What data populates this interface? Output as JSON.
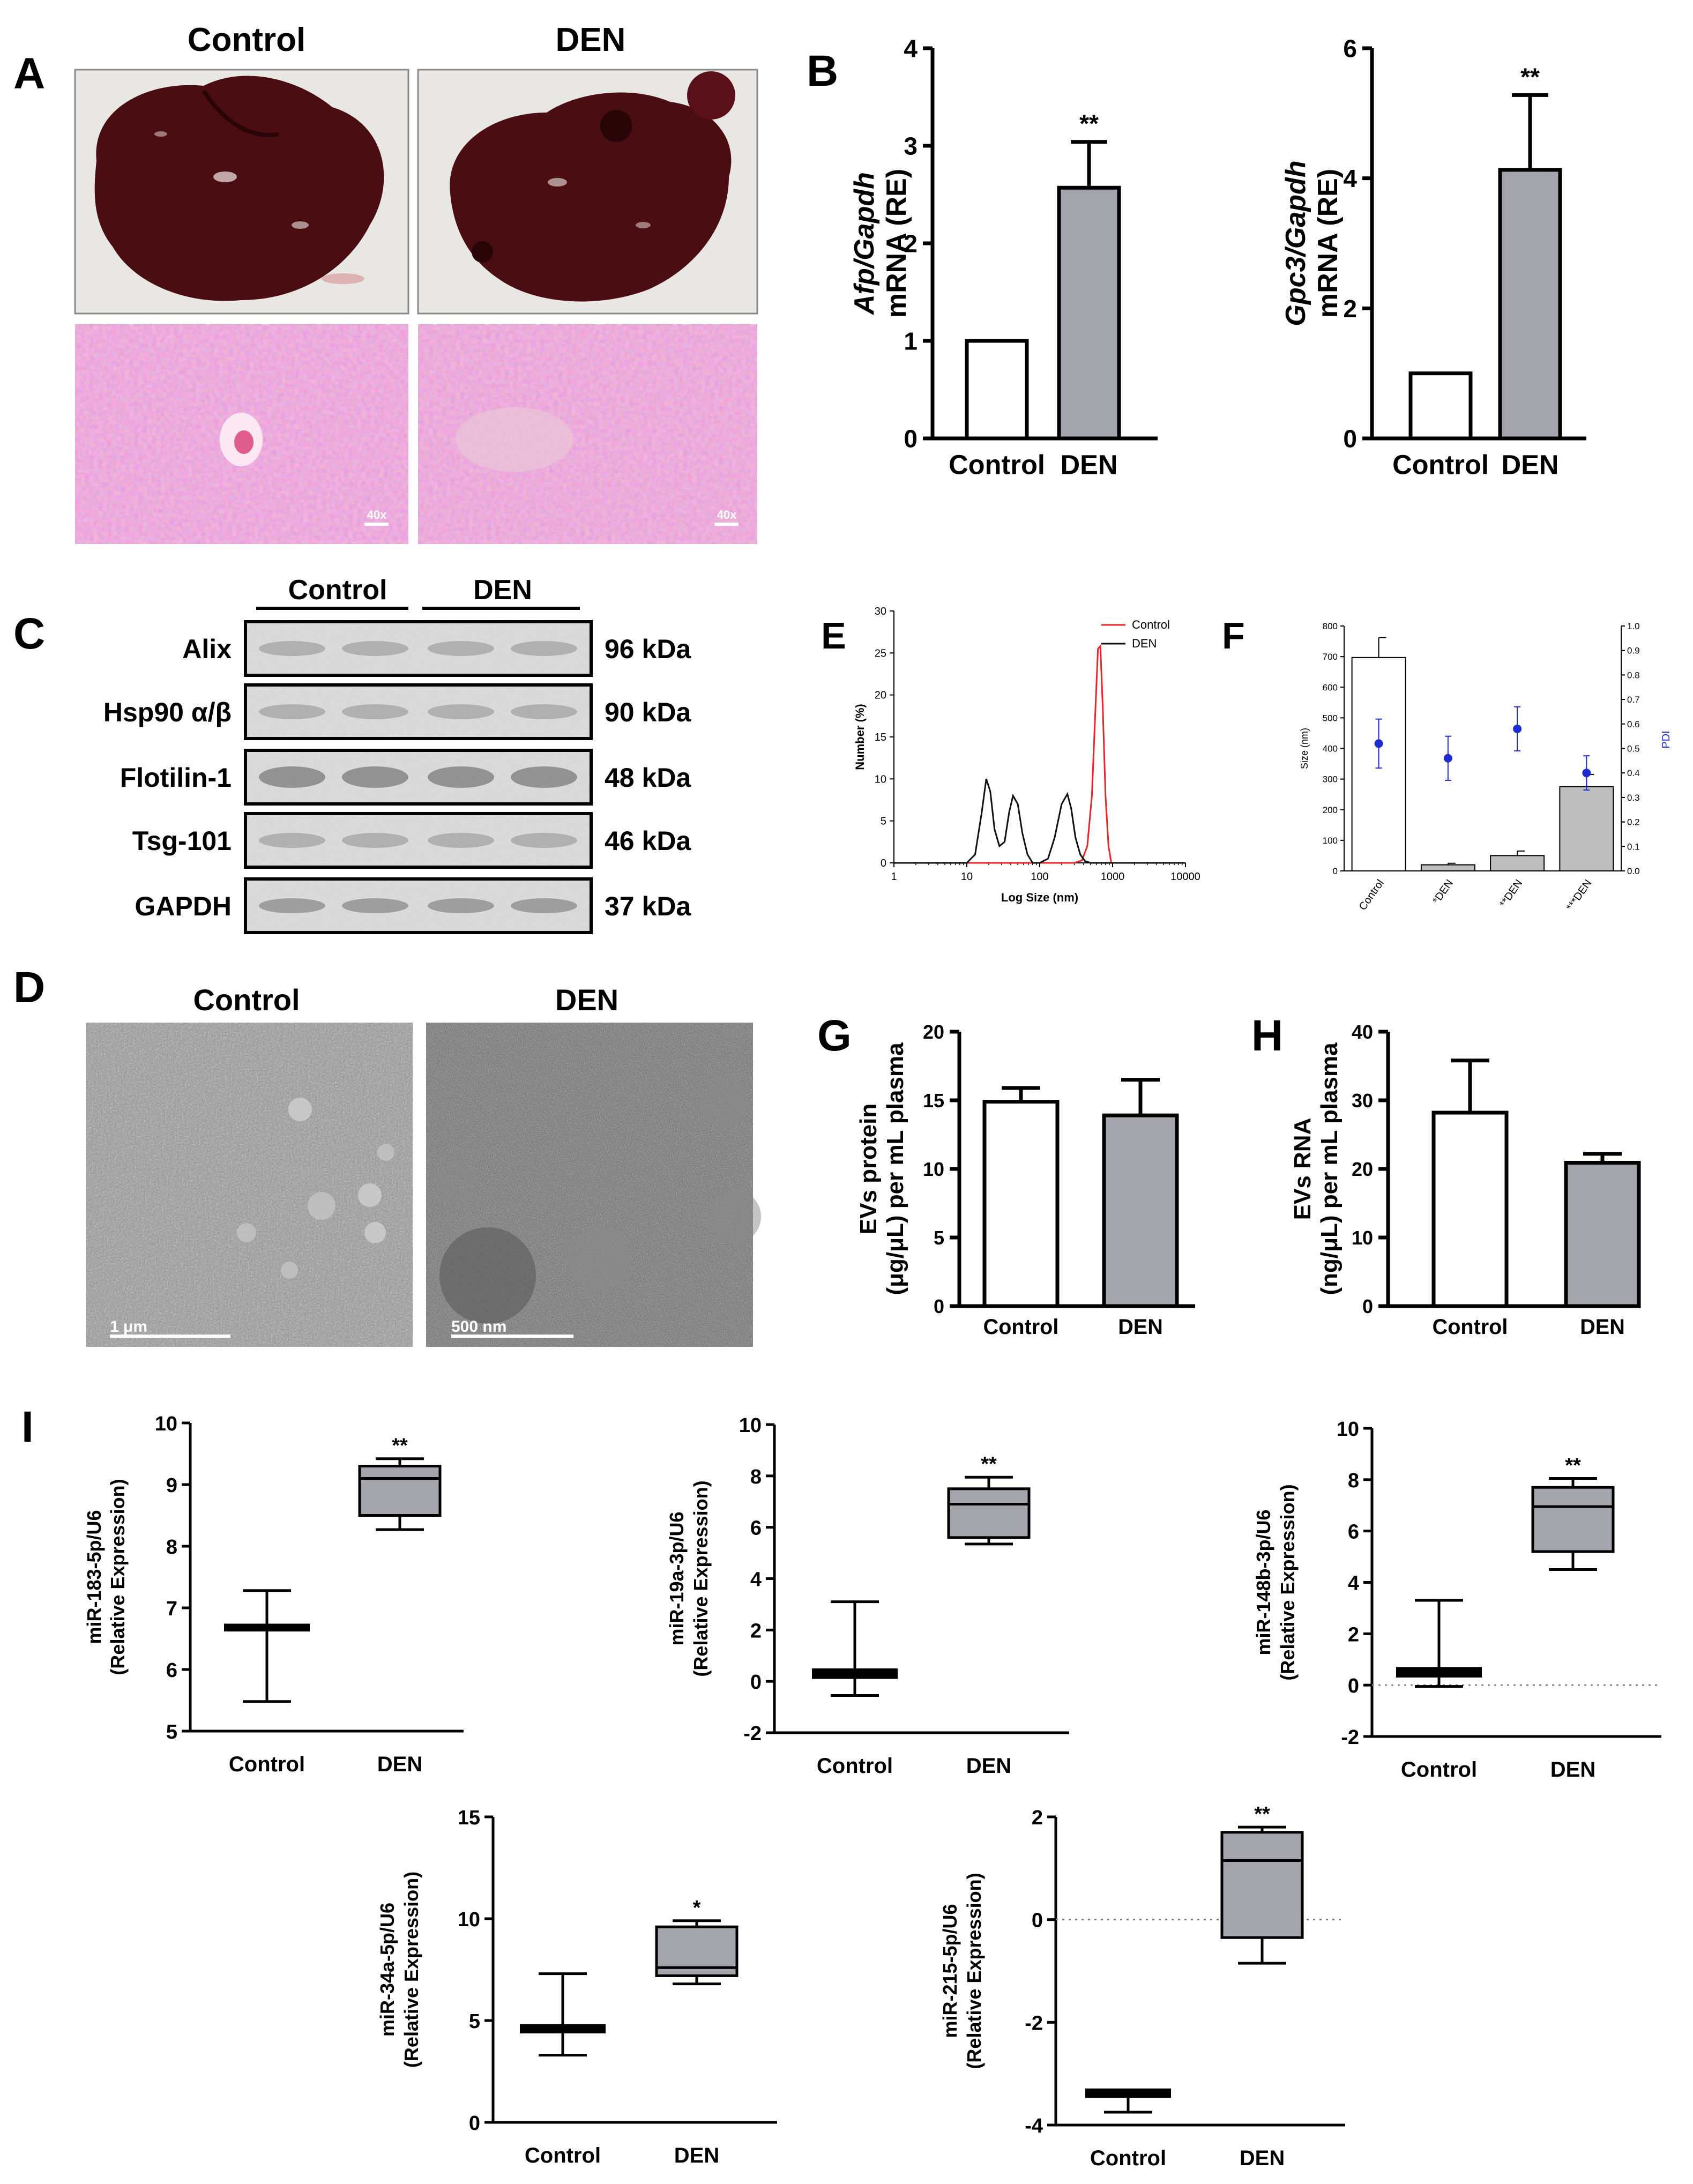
{
  "panel_letters": {
    "A": "A",
    "B": "B",
    "C": "C",
    "D": "D",
    "E": "E",
    "F": "F",
    "G": "G",
    "H": "H",
    "I": "I"
  },
  "groups": {
    "control": "Control",
    "den": "DEN"
  },
  "panel_a": {
    "magnification_top_left": "40x",
    "magnification_top_right": "40x",
    "colors": {
      "liver": "#4a0d12",
      "he_stain": "#d16fa5",
      "he_nuclei": "#5b2c86"
    }
  },
  "panel_c": {
    "bands": [
      {
        "name": "Alix",
        "size": "96 kDa"
      },
      {
        "name": "Hsp90 α/β",
        "size": "90 kDa"
      },
      {
        "name": "Flotilin-1",
        "size": "48 kDa"
      },
      {
        "name": "Tsg-101",
        "size": "46 kDa"
      },
      {
        "name": "GAPDH",
        "size": "37 kDa"
      }
    ]
  },
  "panel_d": {
    "scale_left": "1 μm",
    "scale_right": "500 nm"
  },
  "chart_data": [
    {
      "id": "B1",
      "type": "bar",
      "categories": [
        "Control",
        "DEN"
      ],
      "values": [
        1.0,
        2.57
      ],
      "errors": [
        0,
        0.47
      ],
      "significance": [
        "",
        "**"
      ],
      "ylabel_italic": "Afp/Gapdh",
      "ylabel": "mRNA (RE)",
      "ylim": [
        0,
        4
      ],
      "yticks": [
        "0",
        "1",
        "2",
        "3",
        "4"
      ],
      "colors": [
        "#ffffff",
        "#a4a4ac"
      ]
    },
    {
      "id": "B2",
      "type": "bar",
      "categories": [
        "Control",
        "DEN"
      ],
      "values": [
        1.0,
        4.13
      ],
      "errors": [
        0,
        1.15
      ],
      "significance": [
        "",
        "**"
      ],
      "ylabel_italic": "Gpc3/Gapdh",
      "ylabel": "mRNA (RE)",
      "ylim": [
        0,
        6
      ],
      "yticks": [
        "0",
        "2",
        "4",
        "6"
      ],
      "colors": [
        "#ffffff",
        "#a4a4ac"
      ]
    },
    {
      "id": "E",
      "type": "line",
      "xlabel": "Log Size (nm)",
      "ylabel": "Number (%)",
      "xscale": "log",
      "xlim": [
        1,
        10000
      ],
      "ylim": [
        0,
        30
      ],
      "xticks": [
        "1",
        "10",
        "100",
        "1000",
        "10000"
      ],
      "yticks": [
        "0",
        "5",
        "10",
        "15",
        "20",
        "25",
        "30"
      ],
      "legend_position": "top-right",
      "series": [
        {
          "name": "Control",
          "color": "#e8262a",
          "x": [
            1,
            300,
            380,
            450,
            520,
            580,
            630,
            680,
            730,
            800,
            880,
            960,
            10000
          ],
          "y": [
            0,
            0,
            0.3,
            2,
            8,
            18,
            25.5,
            25.8,
            19,
            8,
            2,
            0,
            0
          ]
        },
        {
          "name": "DEN",
          "color": "#111111",
          "x": [
            1,
            10,
            13,
            16,
            18.5,
            21,
            24,
            28,
            33,
            38,
            43,
            50,
            58,
            68,
            80,
            100,
            130,
            160,
            200,
            240,
            270,
            310,
            360,
            420,
            500,
            10000
          ],
          "y": [
            0,
            0,
            1,
            6,
            10,
            8.5,
            4,
            2,
            2.5,
            6,
            8,
            7,
            3.5,
            1,
            0,
            0,
            0.5,
            3,
            7,
            8.2,
            6.5,
            3,
            1,
            0.2,
            0,
            0
          ]
        }
      ]
    },
    {
      "id": "F",
      "type": "bar",
      "categories": [
        "Control",
        "*DEN",
        "**DEN",
        "***DEN"
      ],
      "values": [
        697,
        20,
        50,
        275
      ],
      "errors": [
        65,
        5,
        15,
        40
      ],
      "ylabel": "Size (nm)",
      "ylim": [
        0,
        800
      ],
      "yticks": [
        "0",
        "100",
        "200",
        "300",
        "400",
        "500",
        "600",
        "700",
        "800"
      ],
      "colors": [
        "#ffffff",
        "#bdbdbd",
        "#bdbdbd",
        "#bdbdbd"
      ],
      "secondary": {
        "label": "PDI",
        "color": "#1f2bd0",
        "ylim": [
          0,
          1
        ],
        "yticks": [
          "0.0",
          "0.1",
          "0.2",
          "0.3",
          "0.4",
          "0.5",
          "0.6",
          "0.7",
          "0.8",
          "0.9",
          "1.0"
        ],
        "values": [
          0.52,
          0.46,
          0.58,
          0.4
        ],
        "errors": [
          0.1,
          0.09,
          0.09,
          0.07
        ]
      }
    },
    {
      "id": "G",
      "type": "bar",
      "categories": [
        "Control",
        "DEN"
      ],
      "values": [
        14.9,
        13.9
      ],
      "errors": [
        1.0,
        2.6
      ],
      "ylabel": "EVs protein",
      "ylabel2": "(μg/μL) per mL plasma",
      "ylim": [
        0,
        20
      ],
      "yticks": [
        "0",
        "5",
        "10",
        "15",
        "20"
      ],
      "colors": [
        "#ffffff",
        "#a4a4ac"
      ]
    },
    {
      "id": "H",
      "type": "bar",
      "categories": [
        "Control",
        "DEN"
      ],
      "values": [
        28.2,
        20.9
      ],
      "errors": [
        7.6,
        1.3
      ],
      "ylabel": "EVs RNA",
      "ylabel2": "(ng/μL) per mL plasma",
      "ylim": [
        0,
        40
      ],
      "yticks": [
        "0",
        "10",
        "20",
        "30",
        "40"
      ],
      "colors": [
        "#ffffff",
        "#a4a4ac"
      ]
    },
    {
      "id": "I1",
      "type": "box",
      "categories": [
        "Control",
        "DEN"
      ],
      "ylabel": "miR-183-5p/U6",
      "ylabel2": "(Relative Expression)",
      "ylim": [
        5,
        10
      ],
      "yticks": [
        "5",
        "6",
        "7",
        "8",
        "9",
        "10"
      ],
      "zero_line": false,
      "boxes": [
        {
          "min": 5.48,
          "q1": 6.66,
          "median": 6.68,
          "q3": 6.7,
          "max": 7.28
        },
        {
          "min": 8.27,
          "q1": 8.5,
          "median": 9.1,
          "q3": 9.3,
          "max": 9.42,
          "sig": "**"
        }
      ]
    },
    {
      "id": "I2",
      "type": "box",
      "categories": [
        "Control",
        "DEN"
      ],
      "ylabel": "miR-19a-3p/U6",
      "ylabel2": "(Relative Expression)",
      "ylim": [
        -2,
        10
      ],
      "yticks": [
        "-2",
        "0",
        "2",
        "4",
        "6",
        "8",
        "10"
      ],
      "zero_line": false,
      "boxes": [
        {
          "min": -0.55,
          "q1": 0.2,
          "median": 0.3,
          "q3": 0.4,
          "max": 3.1
        },
        {
          "min": 5.35,
          "q1": 5.6,
          "median": 6.9,
          "q3": 7.5,
          "max": 7.95,
          "sig": "**"
        }
      ]
    },
    {
      "id": "I3",
      "type": "box",
      "categories": [
        "Control",
        "DEN"
      ],
      "ylabel": "miR-148b-3p/U6",
      "ylabel2": "(Relative Expression)",
      "ylim": [
        -2,
        10
      ],
      "yticks": [
        "-2",
        "0",
        "2",
        "4",
        "6",
        "8",
        "10"
      ],
      "zero_line": true,
      "boxes": [
        {
          "min": -0.05,
          "q1": 0.4,
          "median": 0.5,
          "q3": 0.6,
          "max": 3.3
        },
        {
          "min": 4.5,
          "q1": 5.2,
          "median": 6.95,
          "q3": 7.7,
          "max": 8.05,
          "sig": "**"
        }
      ]
    },
    {
      "id": "I4",
      "type": "box",
      "categories": [
        "Control",
        "DEN"
      ],
      "ylabel": "miR-34a-5p/U6",
      "ylabel2": "(Relative Expression)",
      "ylim": [
        0,
        15
      ],
      "yticks": [
        "0",
        "5",
        "10",
        "15"
      ],
      "zero_line": false,
      "boxes": [
        {
          "min": 3.3,
          "q1": 4.5,
          "median": 4.6,
          "q3": 4.7,
          "max": 7.3
        },
        {
          "min": 6.8,
          "q1": 7.2,
          "median": 7.6,
          "q3": 9.6,
          "max": 9.9,
          "sig": "*"
        }
      ]
    },
    {
      "id": "I5",
      "type": "box",
      "categories": [
        "Control",
        "DEN"
      ],
      "ylabel": "miR-215-5p/U6",
      "ylabel2": "(Relative Expression)",
      "ylim": [
        -4,
        2
      ],
      "yticks": [
        "-4",
        "-2",
        "0",
        "2"
      ],
      "zero_line": true,
      "boxes": [
        {
          "min": -3.75,
          "q1": -3.42,
          "median": -3.38,
          "q3": -3.34,
          "max": -3.34
        },
        {
          "min": -0.85,
          "q1": -0.35,
          "median": 1.15,
          "q3": 1.7,
          "max": 1.8,
          "sig": "**"
        }
      ]
    }
  ]
}
